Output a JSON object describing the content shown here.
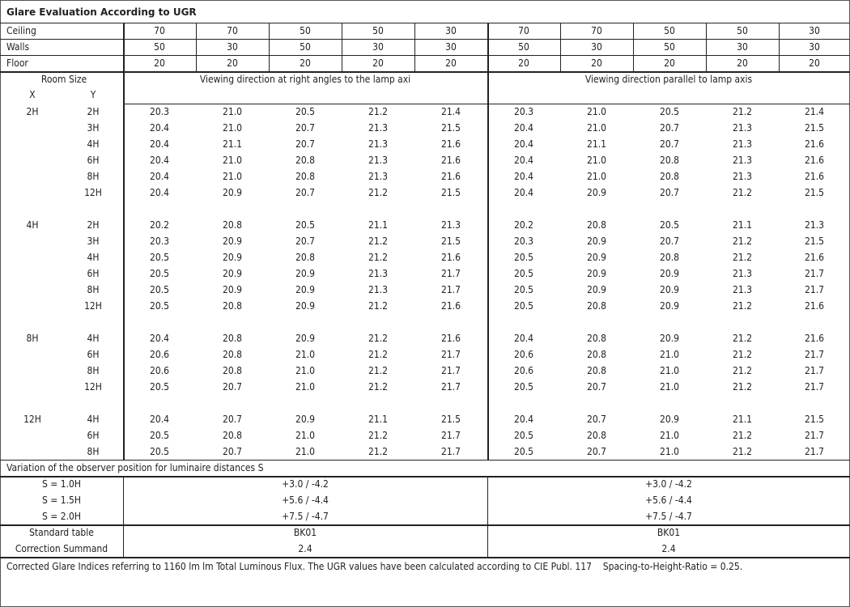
{
  "title": "Glare Evaluation According to UGR",
  "reflectances": [
    {
      "label": "Ceiling",
      "values": [
        "70",
        "70",
        "50",
        "50",
        "30",
        "70",
        "70",
        "50",
        "50",
        "30"
      ]
    },
    {
      "label": "Walls",
      "values": [
        "50",
        "30",
        "50",
        "30",
        "30",
        "50",
        "30",
        "50",
        "30",
        "30"
      ]
    },
    {
      "label": "Floor",
      "values": [
        "20",
        "20",
        "20",
        "20",
        "20",
        "20",
        "20",
        "20",
        "20",
        "20"
      ]
    }
  ],
  "room_size_label": "Room Size",
  "x_label": "X",
  "y_label": "Y",
  "direction_right_angles": "Viewing direction at right angles to the lamp axi",
  "direction_parallel": "Viewing direction parallel to lamp axis",
  "groups": [
    {
      "x": "2H",
      "rows": [
        {
          "y": "2H",
          "values": [
            "20.3",
            "21.0",
            "20.5",
            "21.2",
            "21.4",
            "20.3",
            "21.0",
            "20.5",
            "21.2",
            "21.4"
          ]
        },
        {
          "y": "3H",
          "values": [
            "20.4",
            "21.0",
            "20.7",
            "21.3",
            "21.5",
            "20.4",
            "21.0",
            "20.7",
            "21.3",
            "21.5"
          ]
        },
        {
          "y": "4H",
          "values": [
            "20.4",
            "21.1",
            "20.7",
            "21.3",
            "21.6",
            "20.4",
            "21.1",
            "20.7",
            "21.3",
            "21.6"
          ]
        },
        {
          "y": "6H",
          "values": [
            "20.4",
            "21.0",
            "20.8",
            "21.3",
            "21.6",
            "20.4",
            "21.0",
            "20.8",
            "21.3",
            "21.6"
          ]
        },
        {
          "y": "8H",
          "values": [
            "20.4",
            "21.0",
            "20.8",
            "21.3",
            "21.6",
            "20.4",
            "21.0",
            "20.8",
            "21.3",
            "21.6"
          ]
        },
        {
          "y": "12H",
          "values": [
            "20.4",
            "20.9",
            "20.7",
            "21.2",
            "21.5",
            "20.4",
            "20.9",
            "20.7",
            "21.2",
            "21.5"
          ]
        }
      ]
    },
    {
      "x": "4H",
      "rows": [
        {
          "y": "2H",
          "values": [
            "20.2",
            "20.8",
            "20.5",
            "21.1",
            "21.3",
            "20.2",
            "20.8",
            "20.5",
            "21.1",
            "21.3"
          ]
        },
        {
          "y": "3H",
          "values": [
            "20.3",
            "20.9",
            "20.7",
            "21.2",
            "21.5",
            "20.3",
            "20.9",
            "20.7",
            "21.2",
            "21.5"
          ]
        },
        {
          "y": "4H",
          "values": [
            "20.5",
            "20.9",
            "20.8",
            "21.2",
            "21.6",
            "20.5",
            "20.9",
            "20.8",
            "21.2",
            "21.6"
          ]
        },
        {
          "y": "6H",
          "values": [
            "20.5",
            "20.9",
            "20.9",
            "21.3",
            "21.7",
            "20.5",
            "20.9",
            "20.9",
            "21.3",
            "21.7"
          ]
        },
        {
          "y": "8H",
          "values": [
            "20.5",
            "20.9",
            "20.9",
            "21.3",
            "21.7",
            "20.5",
            "20.9",
            "20.9",
            "21.3",
            "21.7"
          ]
        },
        {
          "y": "12H",
          "values": [
            "20.5",
            "20.8",
            "20.9",
            "21.2",
            "21.6",
            "20.5",
            "20.8",
            "20.9",
            "21.2",
            "21.6"
          ]
        }
      ]
    },
    {
      "x": "8H",
      "rows": [
        {
          "y": "4H",
          "values": [
            "20.4",
            "20.8",
            "20.9",
            "21.2",
            "21.6",
            "20.4",
            "20.8",
            "20.9",
            "21.2",
            "21.6"
          ]
        },
        {
          "y": "6H",
          "values": [
            "20.6",
            "20.8",
            "21.0",
            "21.2",
            "21.7",
            "20.6",
            "20.8",
            "21.0",
            "21.2",
            "21.7"
          ]
        },
        {
          "y": "8H",
          "values": [
            "20.6",
            "20.8",
            "21.0",
            "21.2",
            "21.7",
            "20.6",
            "20.8",
            "21.0",
            "21.2",
            "21.7"
          ]
        },
        {
          "y": "12H",
          "values": [
            "20.5",
            "20.7",
            "21.0",
            "21.2",
            "21.7",
            "20.5",
            "20.7",
            "21.0",
            "21.2",
            "21.7"
          ]
        }
      ]
    },
    {
      "x": "12H",
      "rows": [
        {
          "y": "4H",
          "values": [
            "20.4",
            "20.7",
            "20.9",
            "21.1",
            "21.5",
            "20.4",
            "20.7",
            "20.9",
            "21.1",
            "21.5"
          ]
        },
        {
          "y": "6H",
          "values": [
            "20.5",
            "20.8",
            "21.0",
            "21.2",
            "21.7",
            "20.5",
            "20.8",
            "21.0",
            "21.2",
            "21.7"
          ]
        },
        {
          "y": "8H",
          "values": [
            "20.5",
            "20.7",
            "21.0",
            "21.2",
            "21.7",
            "20.5",
            "20.7",
            "21.0",
            "21.2",
            "21.7"
          ]
        }
      ]
    }
  ],
  "variation_title": "Variation of the observer position for luminaire distances S",
  "variation": [
    {
      "label": "S = 1.0H",
      "right_angles": "+3.0 / -4.2",
      "parallel": "+3.0 / -4.2"
    },
    {
      "label": "S = 1.5H",
      "right_angles": "+5.6 / -4.4",
      "parallel": "+5.6 / -4.4"
    },
    {
      "label": "S = 2.0H",
      "right_angles": "+7.5 / -4.7",
      "parallel": "+7.5 / -4.7"
    }
  ],
  "standard_table": {
    "label": "Standard table",
    "right_angles": "BK01",
    "parallel": "BK01"
  },
  "correction_summand": {
    "label": "Correction Summand",
    "right_angles": "2.4",
    "parallel": "2.4"
  },
  "footnote": "Corrected Glare Indices referring to 1160 lm lm Total Luminous Flux. The UGR values have been calculated according to CIE Publ. 117    Spacing-to-Height-Ratio = 0.25."
}
